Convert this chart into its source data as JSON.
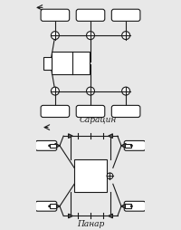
{
  "bg_color": "#e8e8e8",
  "line_color": "#1a1a1a",
  "label_saratsin": "Сарацин",
  "label_panar": "Панар",
  "label_fontsize": 6.5,
  "label_fontstyle": "italic"
}
